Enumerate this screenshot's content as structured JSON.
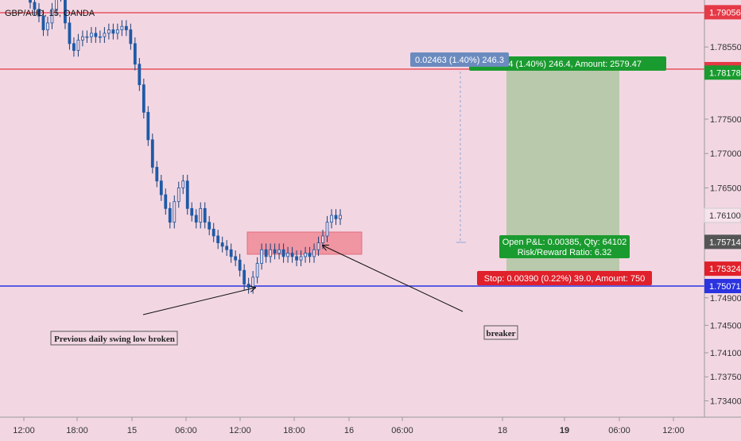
{
  "header": {
    "symbol_label": "GBP/AUD, 15, OANDA"
  },
  "colors": {
    "background": "#f2d7e3",
    "candle_body": "#1e5aa6",
    "candle_wick": "#1a3d73",
    "resistance_line": "#e63946",
    "support_line": "#2b33e0",
    "target_zone": "#b9c9ab",
    "stop_zone": "#f39aa7",
    "breaker_zone": "#f08a96",
    "label_green": "#1a9b2f",
    "label_red": "#e0202a",
    "label_blue_grey": "#6b8bbf"
  },
  "chart_data": {
    "type": "candlestick",
    "title": "GBP/AUD, 15, OANDA",
    "xlabel": "",
    "ylabel": "",
    "ylim": [
      1.7322,
      1.7935
    ],
    "grid": false,
    "x_tick_labels": [
      "12:00",
      "18:00",
      "15",
      "06:00",
      "12:00",
      "18:00",
      "16",
      "06:00",
      "18",
      "19",
      "06:00",
      "12:00"
    ],
    "y_tick_labels": [
      "1.78550",
      "1.77500",
      "1.77000",
      "1.76500",
      "1.74900",
      "1.74500",
      "1.74100",
      "1.73750",
      "1.73400"
    ],
    "y_tick_values": [
      1.7855,
      1.775,
      1.77,
      1.765,
      1.749,
      1.745,
      1.741,
      1.7375,
      1.734
    ],
    "horizontal_lines": [
      {
        "price": 1.79056,
        "label": "1.79056",
        "color": "#e63946"
      },
      {
        "price": 1.78228,
        "label": "1.78228",
        "color": "#e63946"
      },
      {
        "price": 1.75071,
        "label": "1.75071",
        "color": "#2b33e0"
      }
    ],
    "price_badges": [
      {
        "price": 1.78178,
        "label": "1.78178",
        "color": "#1a9b2f"
      },
      {
        "price": 1.761,
        "label": "1.76100",
        "color": "#f7e3ec"
      },
      {
        "price": 1.75714,
        "label": "1.75714",
        "color": "#555555"
      },
      {
        "price": 1.75324,
        "label": "1.75324",
        "color": "#e0202a"
      }
    ],
    "candles_close_path": [
      1.792,
      1.791,
      1.79,
      1.788,
      1.789,
      1.791,
      1.793,
      1.7935,
      1.789,
      1.786,
      1.785,
      1.7865,
      1.787,
      1.787,
      1.7875,
      1.787,
      1.787,
      1.7875,
      1.788,
      1.7875,
      1.788,
      1.7885,
      1.788,
      1.786,
      1.783,
      1.78,
      1.776,
      1.772,
      1.768,
      1.766,
      1.764,
      1.762,
      1.76,
      1.763,
      1.765,
      1.766,
      1.762,
      1.761,
      1.76,
      1.762,
      1.76,
      1.759,
      1.758,
      1.757,
      1.7565,
      1.756,
      1.755,
      1.7545,
      1.753,
      1.751,
      1.7505,
      1.752,
      1.754,
      1.756,
      1.755,
      1.756,
      1.7555,
      1.756,
      1.755,
      1.7555,
      1.755,
      1.7545,
      1.755,
      1.7555,
      1.755,
      1.756,
      1.757,
      1.758,
      1.76,
      1.761,
      1.7605,
      1.761
    ],
    "annotations": [
      {
        "text": "Previous daily swing low broken"
      },
      {
        "text": "breaker"
      }
    ]
  },
  "position": {
    "target_label": "2464 (1.40%) 246.4, Amount: 2579.47",
    "measure_label": "0.02463 (1.40%) 246.3",
    "pnl_label": "Open P&L: 0.00385, Qty: 64102",
    "rr_label": "Risk/Reward Ratio: 6.32",
    "stop_label": "Stop: 0.00390 (0.22%) 39.0, Amount: 750"
  }
}
